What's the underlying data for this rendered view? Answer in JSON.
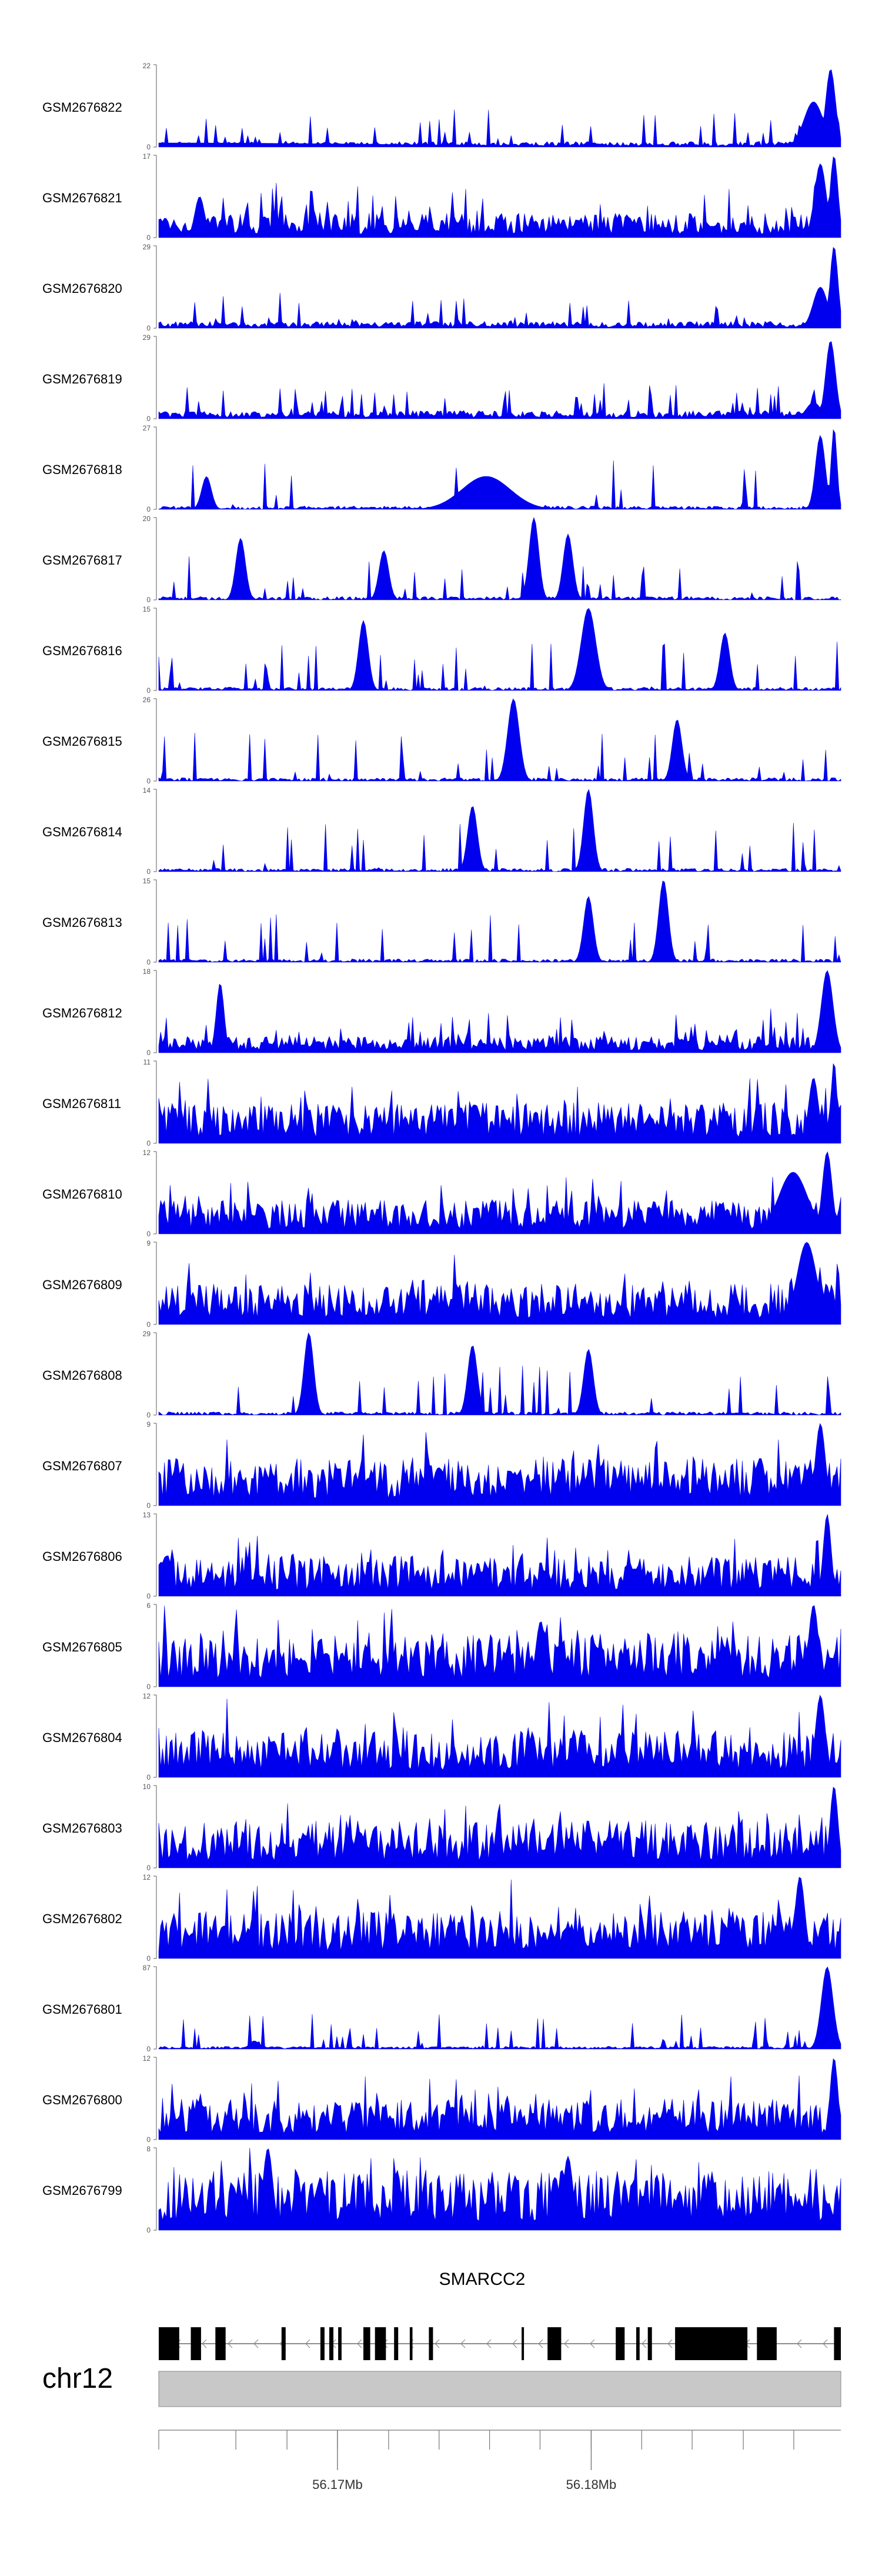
{
  "chart_data": {
    "type": "area",
    "title": "",
    "color": "#0000EE",
    "samples": [
      {
        "name": "GSM2676822",
        "ymax": "22",
        "label_min": "0",
        "baseline": 0.04,
        "peaks": [
          [
            0.96,
            0.55,
            0.02
          ],
          [
            0.985,
            0.95,
            0.01
          ],
          [
            0.0,
            0.05,
            0.5
          ]
        ]
      },
      {
        "name": "GSM2676821",
        "ymax": "17",
        "label_min": "0",
        "baseline": 0.18,
        "peaks": [
          [
            0.06,
            0.45,
            0.01
          ],
          [
            0.06,
            0.5,
            0.01
          ],
          [
            0.97,
            0.9,
            0.012
          ],
          [
            0.99,
            1.0,
            0.008
          ]
        ]
      },
      {
        "name": "GSM2676820",
        "ymax": "29",
        "label_min": "0",
        "baseline": 0.05,
        "peaks": [
          [
            0.97,
            0.5,
            0.015
          ],
          [
            0.99,
            1.0,
            0.008
          ]
        ]
      },
      {
        "name": "GSM2676819",
        "ymax": "29",
        "label_min": "0",
        "baseline": 0.06,
        "peaks": [
          [
            0.96,
            0.2,
            0.015
          ],
          [
            0.985,
            0.95,
            0.01
          ]
        ]
      },
      {
        "name": "GSM2676818",
        "ymax": "27",
        "label_min": "0",
        "baseline": 0.06,
        "sparse": true,
        "peaks": [
          [
            0.07,
            0.4,
            0.01
          ],
          [
            0.48,
            0.4,
            0.05
          ],
          [
            0.97,
            0.9,
            0.01
          ],
          [
            0.99,
            1.0,
            0.006
          ]
        ]
      },
      {
        "name": "GSM2676817",
        "ymax": "20",
        "label_min": "0",
        "baseline": 0.05,
        "sparse": true,
        "peaks": [
          [
            0.12,
            0.75,
            0.01
          ],
          [
            0.33,
            0.6,
            0.01
          ],
          [
            0.55,
            1.0,
            0.01
          ],
          [
            0.6,
            0.8,
            0.01
          ]
        ]
      },
      {
        "name": "GSM2676816",
        "ymax": "15",
        "label_min": "0",
        "baseline": 0.05,
        "sparse": true,
        "peaks": [
          [
            0.3,
            0.85,
            0.01
          ],
          [
            0.63,
            1.0,
            0.015
          ],
          [
            0.83,
            0.7,
            0.01
          ]
        ]
      },
      {
        "name": "GSM2676815",
        "ymax": "26",
        "label_min": "0",
        "baseline": 0.05,
        "sparse": true,
        "peaks": [
          [
            0.52,
            1.0,
            0.012
          ],
          [
            0.76,
            0.75,
            0.01
          ]
        ]
      },
      {
        "name": "GSM2676814",
        "ymax": "14",
        "label_min": "0",
        "baseline": 0.05,
        "sparse": true,
        "peaks": [
          [
            0.46,
            0.8,
            0.01
          ],
          [
            0.63,
            1.0,
            0.01
          ]
        ]
      },
      {
        "name": "GSM2676813",
        "ymax": "15",
        "label_min": "0",
        "baseline": 0.05,
        "sparse": true,
        "peaks": [
          [
            0.63,
            0.8,
            0.01
          ],
          [
            0.74,
            1.0,
            0.01
          ]
        ]
      },
      {
        "name": "GSM2676812",
        "ymax": "18",
        "label_min": "0",
        "baseline": 0.12,
        "peaks": [
          [
            0.09,
            0.85,
            0.008
          ],
          [
            0.98,
            1.0,
            0.012
          ]
        ]
      },
      {
        "name": "GSM2676811",
        "ymax": "11",
        "label_min": "0",
        "baseline": 0.3,
        "peaks": [
          [
            0.96,
            0.8,
            0.01
          ],
          [
            0.99,
            1.0,
            0.006
          ]
        ]
      },
      {
        "name": "GSM2676810",
        "ymax": "12",
        "label_min": "0",
        "baseline": 0.25,
        "peaks": [
          [
            0.93,
            0.75,
            0.03
          ],
          [
            0.98,
            1.0,
            0.01
          ]
        ]
      },
      {
        "name": "GSM2676809",
        "ymax": "9",
        "label_min": "0",
        "baseline": 0.3,
        "peaks": [
          [
            0.95,
            1.0,
            0.02
          ]
        ]
      },
      {
        "name": "GSM2676808",
        "ymax": "29",
        "label_min": "0",
        "baseline": 0.05,
        "sparse": true,
        "peaks": [
          [
            0.22,
            1.0,
            0.01
          ],
          [
            0.46,
            0.85,
            0.01
          ],
          [
            0.63,
            0.8,
            0.01
          ]
        ]
      },
      {
        "name": "GSM2676807",
        "ymax": "9",
        "label_min": "0",
        "baseline": 0.35,
        "peaks": [
          [
            0.97,
            1.0,
            0.01
          ]
        ]
      },
      {
        "name": "GSM2676806",
        "ymax": "13",
        "label_min": "0",
        "baseline": 0.3,
        "peaks": [
          [
            0.98,
            1.0,
            0.008
          ]
        ]
      },
      {
        "name": "GSM2676805",
        "ymax": "6",
        "label_min": "0",
        "baseline": 0.4,
        "peaks": [
          [
            0.56,
            0.8,
            0.01
          ],
          [
            0.96,
            1.0,
            0.01
          ]
        ]
      },
      {
        "name": "GSM2676804",
        "ymax": "12",
        "label_min": "0",
        "baseline": 0.35,
        "peaks": [
          [
            0.97,
            1.0,
            0.01
          ]
        ]
      },
      {
        "name": "GSM2676803",
        "ymax": "10",
        "label_min": "0",
        "baseline": 0.35,
        "peaks": [
          [
            0.99,
            1.0,
            0.008
          ]
        ]
      },
      {
        "name": "GSM2676802",
        "ymax": "12",
        "label_min": "0",
        "baseline": 0.35,
        "peaks": [
          [
            0.94,
            1.0,
            0.01
          ]
        ]
      },
      {
        "name": "GSM2676801",
        "ymax": "87",
        "label_min": "0",
        "baseline": 0.02,
        "peaks": [
          [
            0.98,
            1.0,
            0.012
          ],
          [
            0.14,
            0.1,
            0.01
          ]
        ]
      },
      {
        "name": "GSM2676800",
        "ymax": "12",
        "label_min": "0",
        "baseline": 0.3,
        "peaks": [
          [
            0.99,
            1.0,
            0.008
          ]
        ]
      },
      {
        "name": "GSM2676799",
        "ymax": "8",
        "label_min": "0",
        "baseline": 0.45,
        "peaks": [
          [
            0.16,
            1.0,
            0.01
          ],
          [
            0.6,
            0.9,
            0.01
          ]
        ]
      }
    ],
    "gene": {
      "name": "SMARCC2",
      "strand": "-",
      "exons": [
        [
          0.0,
          0.03,
          "thick"
        ],
        [
          0.047,
          0.062,
          "thick"
        ],
        [
          0.083,
          0.098,
          "thick"
        ],
        [
          0.18,
          0.186,
          "thick"
        ],
        [
          0.237,
          0.243,
          "thick"
        ],
        [
          0.25,
          0.256,
          "thick"
        ],
        [
          0.263,
          0.268,
          "thick"
        ],
        [
          0.3,
          0.31,
          "thick"
        ],
        [
          0.317,
          0.333,
          "thick"
        ],
        [
          0.345,
          0.351,
          "thick"
        ],
        [
          0.368,
          0.372,
          "thick"
        ],
        [
          0.396,
          0.402,
          "thick"
        ],
        [
          0.532,
          0.535,
          "thick"
        ],
        [
          0.57,
          0.59,
          "thick"
        ],
        [
          0.67,
          0.683,
          "thick"
        ],
        [
          0.7,
          0.705,
          "thick"
        ],
        [
          0.717,
          0.723,
          "thick"
        ],
        [
          0.757,
          0.863,
          "thick"
        ],
        [
          0.877,
          0.906,
          "thick"
        ],
        [
          0.99,
          1.0,
          "thick"
        ]
      ]
    },
    "ideogram": {
      "chromosome": "chr12"
    },
    "axis": {
      "ticks": [
        {
          "pos": 0.262,
          "label": "56.17Mb"
        },
        {
          "pos": 0.634,
          "label": "56.18Mb"
        }
      ],
      "minor_ticks": [
        0.0,
        0.113,
        0.188,
        0.262,
        0.337,
        0.411,
        0.485,
        0.559,
        0.634,
        0.708,
        0.782,
        0.857,
        0.931
      ]
    }
  }
}
